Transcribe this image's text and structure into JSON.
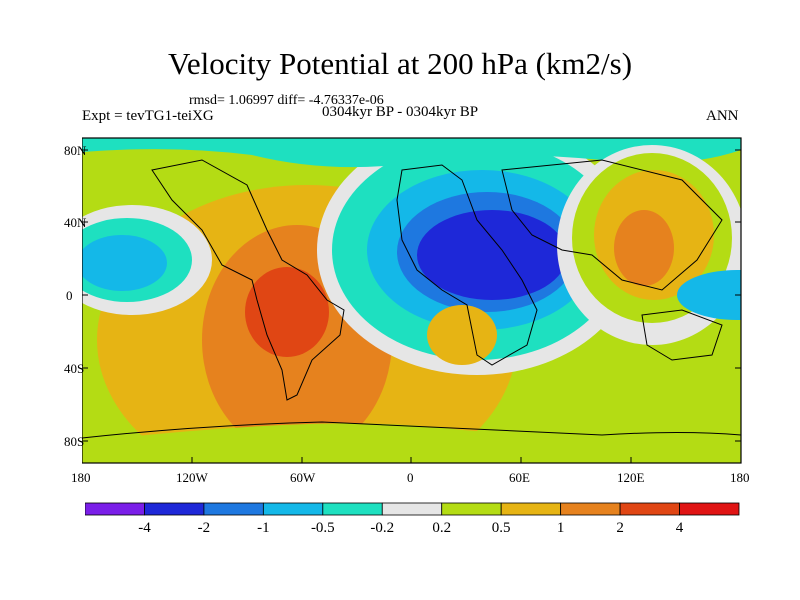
{
  "title": "Velocity Potential at 200 hPa (km2/s)",
  "stats_line": "rmsd= 1.06997 diff= -4.76337e-06",
  "experiment": "Expt = tevTG1-teiXG",
  "period": "0304kyr BP - 0304kyr BP",
  "season": "ANN",
  "map": {
    "y_ticks": [
      "80N",
      "40N",
      "0",
      "40S",
      "80S"
    ],
    "x_ticks": [
      "180",
      "120W",
      "60W",
      "0",
      "60E",
      "120E",
      "180"
    ]
  },
  "colorbar": {
    "colors": [
      "#7a1ee8",
      "#1e28d8",
      "#1e78e0",
      "#14b8e8",
      "#1ee0c0",
      "#e6e6e6",
      "#b4dc14",
      "#e6b414",
      "#e6821e",
      "#e04614",
      "#e01414"
    ],
    "labels": [
      "-4",
      "-2",
      "-1",
      "-0.5",
      "-0.2",
      "0.2",
      "0.5",
      "1",
      "2",
      "4"
    ]
  }
}
